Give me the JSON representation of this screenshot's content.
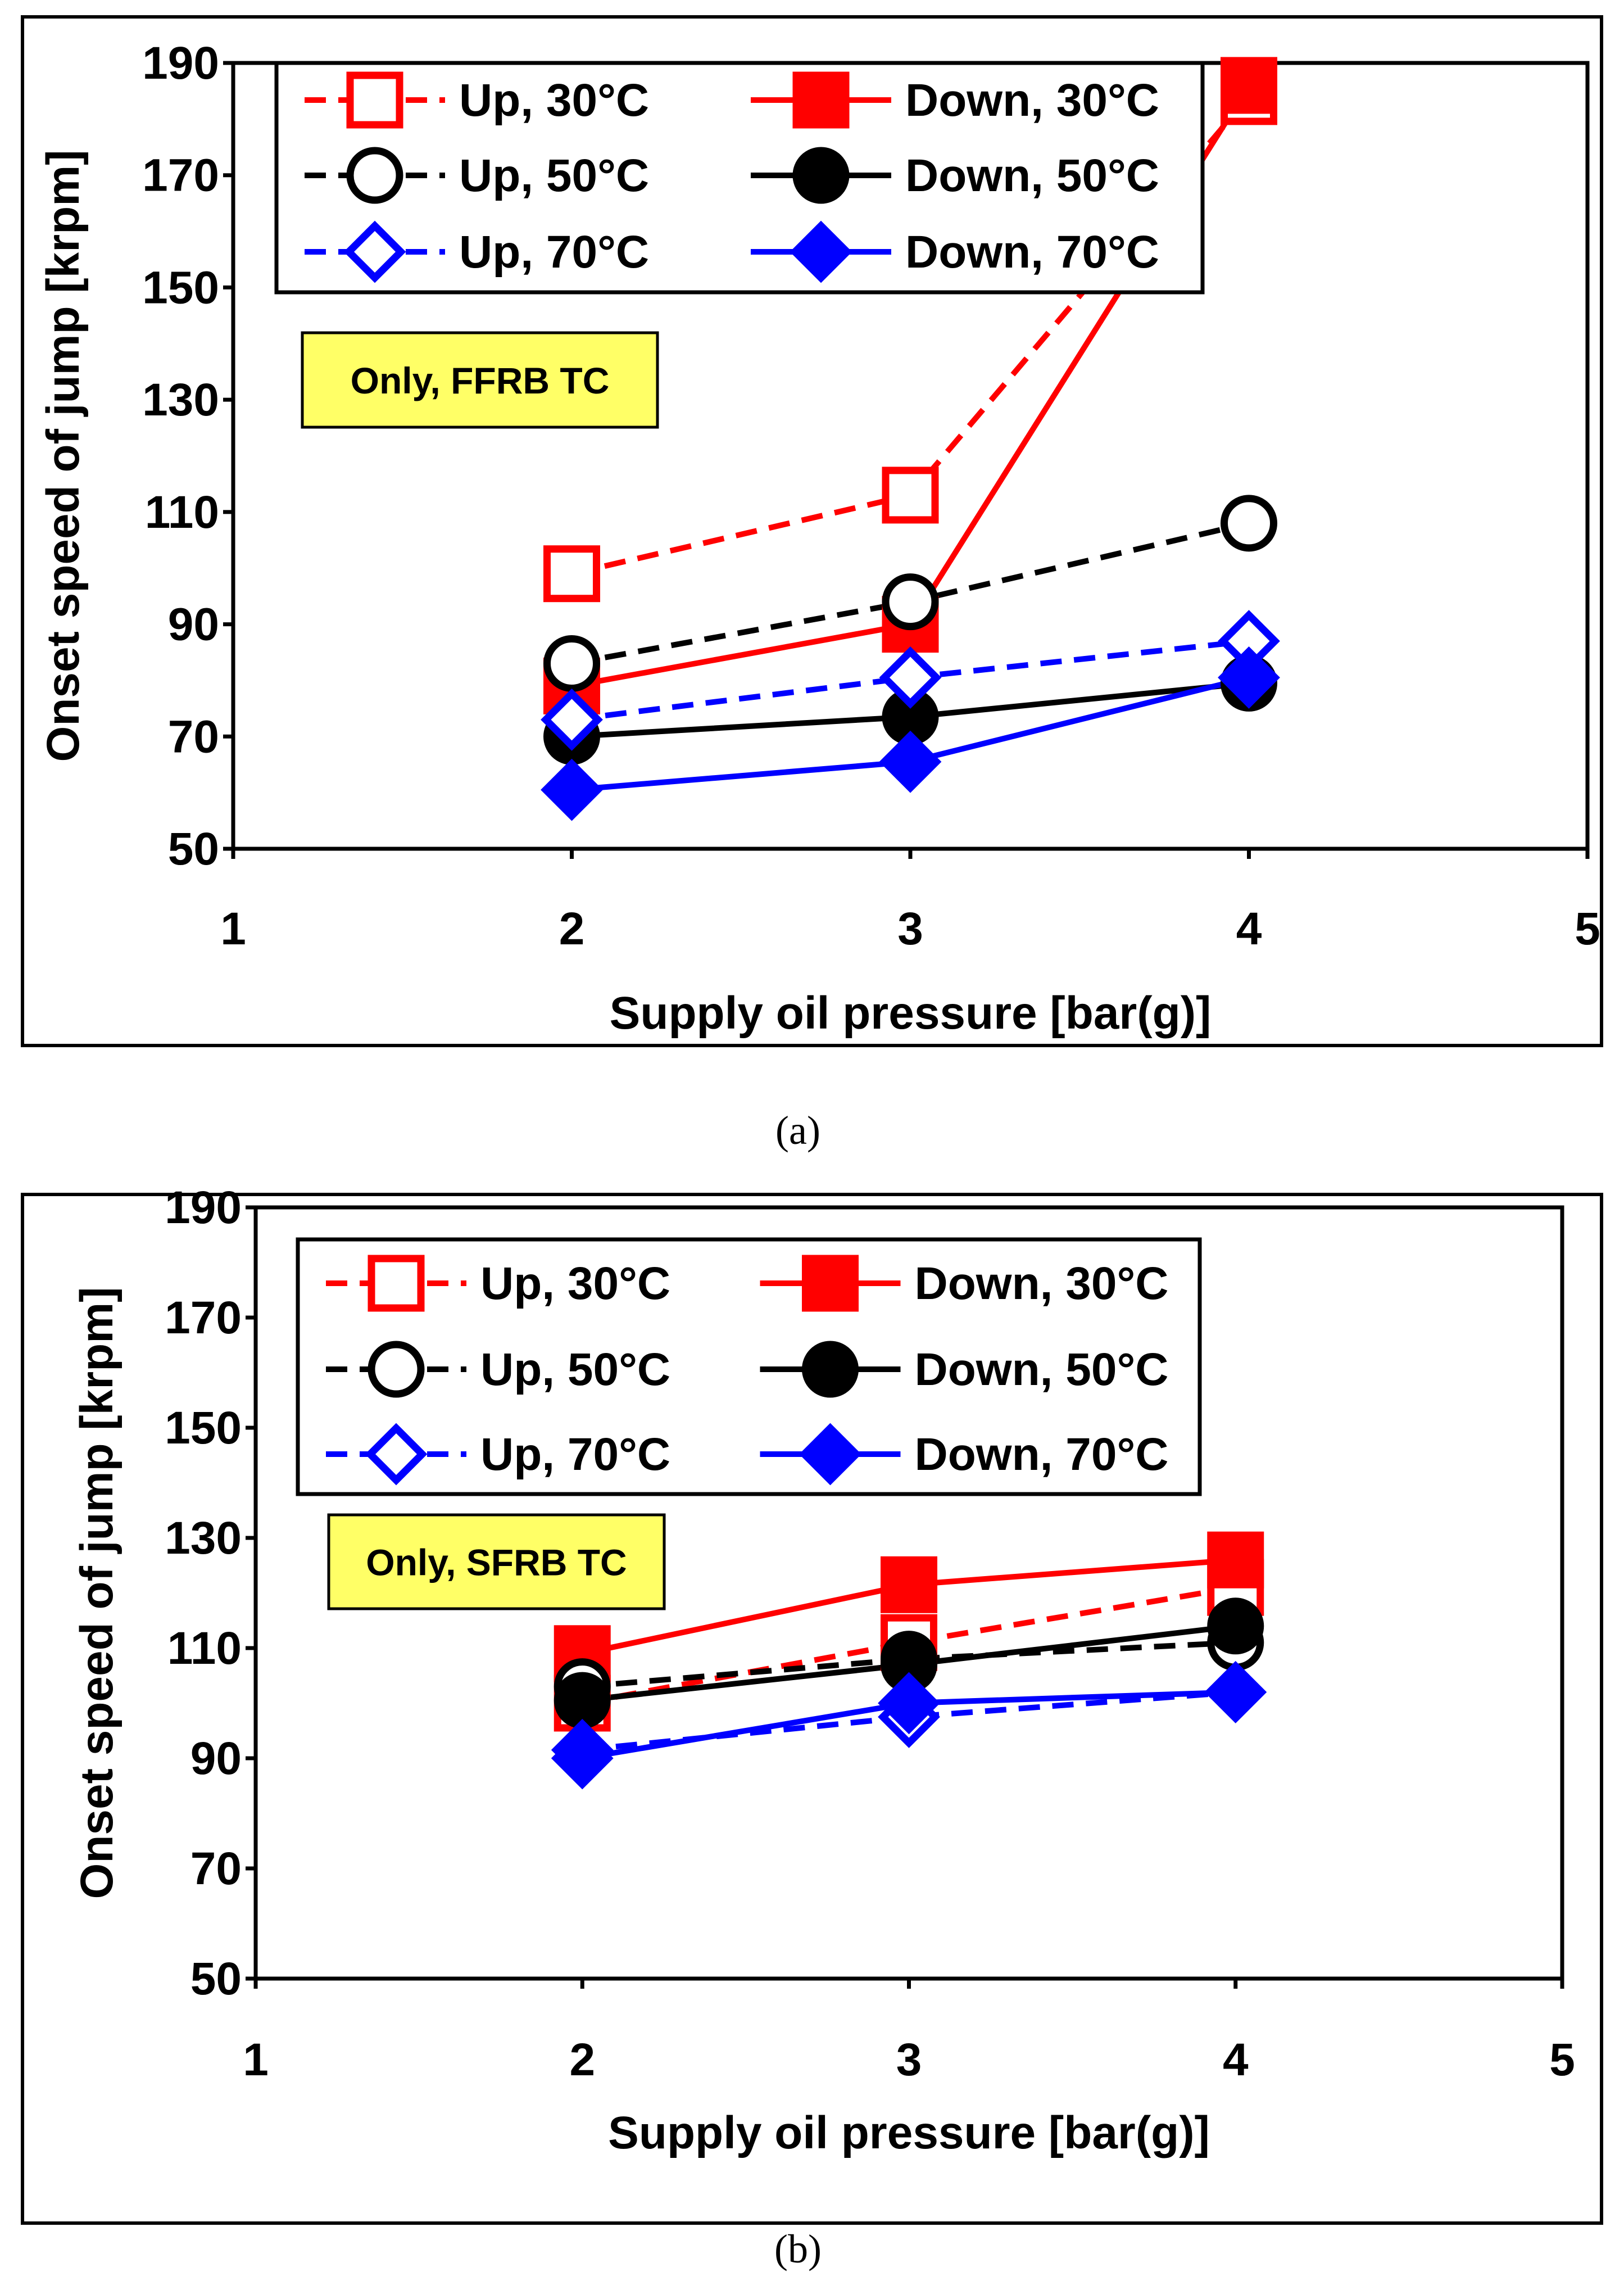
{
  "chart_data": [
    {
      "type": "line",
      "panel_label": "(a)",
      "annotation": "Only, FFRB TC",
      "xlabel": "Supply oil pressure [bar(g)]",
      "ylabel": "Onset speed of jump  [krpm]",
      "xlim": [
        1,
        5
      ],
      "ylim": [
        50,
        190
      ],
      "x_ticks": [
        "1",
        "2",
        "3",
        "4",
        "5"
      ],
      "y_ticks": [
        "50",
        "70",
        "90",
        "110",
        "130",
        "150",
        "170",
        "190"
      ],
      "x": [
        2,
        3,
        4
      ],
      "series": [
        {
          "name": "Up, 30°C",
          "color": "#FF0000",
          "dash": true,
          "marker": "square-open",
          "values": [
            99,
            113,
            184
          ]
        },
        {
          "name": "Down, 30°C",
          "color": "#FF0000",
          "dash": false,
          "marker": "square-filled",
          "values": [
            79,
            90,
            186
          ]
        },
        {
          "name": "Up, 50°C",
          "color": "#000000",
          "dash": true,
          "marker": "circle-open",
          "values": [
            83,
            94,
            108
          ]
        },
        {
          "name": "Down, 50°C",
          "color": "#000000",
          "dash": false,
          "marker": "circle-filled",
          "values": [
            70,
            73.5,
            79.5
          ]
        },
        {
          "name": "Up, 70°C",
          "color": "#0000FF",
          "dash": true,
          "marker": "diamond-open",
          "values": [
            73,
            80.5,
            87
          ]
        },
        {
          "name": "Down, 70°C",
          "color": "#0000FF",
          "dash": false,
          "marker": "diamond-filled",
          "values": [
            60.5,
            65.5,
            80.5
          ]
        }
      ]
    },
    {
      "type": "line",
      "panel_label": "(b)",
      "annotation": "Only, SFRB TC",
      "xlabel": "Supply oil pressure [bar(g)]",
      "ylabel": "Onset speed of jump  [krpm]",
      "xlim": [
        1,
        5
      ],
      "ylim": [
        50,
        190
      ],
      "x_ticks": [
        "1",
        "2",
        "3",
        "4",
        "5"
      ],
      "y_ticks": [
        "50",
        "70",
        "90",
        "110",
        "130",
        "150",
        "170",
        "190"
      ],
      "x": [
        2,
        3,
        4
      ],
      "series": [
        {
          "name": "Up, 30°C",
          "color": "#FF0000",
          "dash": true,
          "marker": "square-open",
          "values": [
            100,
            111,
            121
          ]
        },
        {
          "name": "Down, 30°C",
          "color": "#FF0000",
          "dash": false,
          "marker": "square-filled",
          "values": [
            109,
            121.5,
            126
          ]
        },
        {
          "name": "Up, 50°C",
          "color": "#000000",
          "dash": true,
          "marker": "circle-open",
          "values": [
            103,
            108,
            111
          ]
        },
        {
          "name": "Down, 50°C",
          "color": "#000000",
          "dash": false,
          "marker": "circle-filled",
          "values": [
            100.5,
            107,
            114
          ]
        },
        {
          "name": "Up, 70°C",
          "color": "#0000FF",
          "dash": true,
          "marker": "diamond-open",
          "values": [
            91.5,
            97.5,
            102
          ]
        },
        {
          "name": "Down, 70°C",
          "color": "#0000FF",
          "dash": false,
          "marker": "diamond-filled",
          "values": [
            90,
            100,
            102
          ]
        }
      ]
    }
  ]
}
